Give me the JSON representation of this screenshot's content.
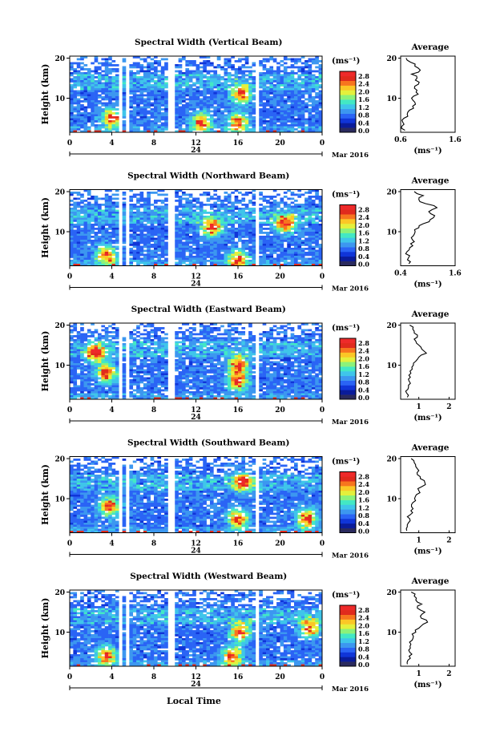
{
  "figure": {
    "y_axis_label": "Height (km)",
    "x_axis_label": "Local Time",
    "date_label": "Mar 2016",
    "date_day": "24",
    "x_ticks": [
      "0",
      "4",
      "8",
      "12",
      "16",
      "20",
      "0"
    ],
    "y_ticks": [
      "20",
      "10"
    ],
    "colorbar_unit": "(ms⁻¹)",
    "colorbar_ticks": [
      "2.8",
      "2.4",
      "2.0",
      "1.6",
      "1.2",
      "0.8",
      "0.4",
      "0.0"
    ],
    "average_title": "Average",
    "average_unit": "(ms⁻¹)",
    "colormap": [
      "#2a2a5e",
      "#0a1c9a",
      "#1035d8",
      "#2a64f5",
      "#3c97f0",
      "#3fc5ea",
      "#43e8c4",
      "#8cf27a",
      "#e4f03c",
      "#fbc726",
      "#f7751e",
      "#e02a1d",
      "#ee2a2a"
    ]
  },
  "chart_data": [
    {
      "type": "heatmap",
      "title": "Spectral Width (Vertical Beam)",
      "xlabel": "",
      "ylabel": "Height (km)",
      "xlim": [
        0,
        24
      ],
      "ylim": [
        1.5,
        20.5
      ],
      "colorbar_range": [
        0.0,
        2.8
      ],
      "data_gaps_hours": [
        [
          4.75,
          5.1
        ],
        [
          5.4,
          5.75
        ],
        [
          9.2,
          9.9
        ],
        [
          17.6,
          18.1
        ]
      ],
      "enhanced_regions": [
        {
          "hour": 4.0,
          "height_km": 5
        },
        {
          "hour": 16.0,
          "height_km": 4
        },
        {
          "hour": 16.3,
          "height_km": 11
        },
        {
          "hour": 12.5,
          "height_km": 4
        }
      ],
      "average_profile": {
        "xlim": [
          0.6,
          1.6
        ],
        "x_ticks": [
          "0.6",
          "1.6"
        ],
        "height_km": [
          2,
          3,
          4,
          5,
          6,
          7,
          8,
          9,
          10,
          11,
          12,
          13,
          14,
          15,
          16,
          17,
          18,
          19,
          20
        ],
        "value": [
          0.68,
          0.62,
          0.64,
          0.66,
          0.72,
          0.76,
          0.82,
          0.86,
          0.8,
          0.92,
          0.9,
          0.86,
          0.94,
          0.9,
          0.8,
          0.96,
          0.86,
          0.78,
          0.7
        ]
      }
    },
    {
      "type": "heatmap",
      "title": "Spectral Width (Northward Beam)",
      "xlabel": "",
      "ylabel": "Height (km)",
      "xlim": [
        0,
        24
      ],
      "ylim": [
        1.5,
        20.5
      ],
      "colorbar_range": [
        0.0,
        2.8
      ],
      "data_gaps_hours": [
        [
          4.75,
          5.1
        ],
        [
          5.4,
          5.75
        ],
        [
          9.2,
          9.9
        ],
        [
          17.6,
          18.1
        ]
      ],
      "enhanced_regions": [
        {
          "hour": 3.5,
          "height_km": 4
        },
        {
          "hour": 16.0,
          "height_km": 3
        },
        {
          "hour": 13.5,
          "height_km": 11
        },
        {
          "hour": 20.5,
          "height_km": 12
        }
      ],
      "average_profile": {
        "xlim": [
          0.4,
          1.6
        ],
        "x_ticks": [
          "0.4",
          "1.6"
        ],
        "height_km": [
          2,
          3,
          4,
          5,
          6,
          7,
          8,
          9,
          10,
          11,
          12,
          13,
          14,
          15,
          16,
          17,
          18,
          19,
          20
        ],
        "value": [
          0.58,
          0.55,
          0.6,
          0.54,
          0.6,
          0.62,
          0.66,
          0.68,
          0.72,
          0.8,
          0.9,
          1.05,
          1.15,
          1.02,
          1.2,
          0.95,
          0.8,
          0.9,
          0.7
        ]
      }
    },
    {
      "type": "heatmap",
      "title": "Spectral Width (Eastward Beam)",
      "xlabel": "",
      "ylabel": "Height (km)",
      "xlim": [
        0,
        24
      ],
      "ylim": [
        1.5,
        20.5
      ],
      "colorbar_range": [
        0.0,
        2.8
      ],
      "data_gaps_hours": [
        [
          4.75,
          5.1
        ],
        [
          5.4,
          5.75
        ],
        [
          9.2,
          9.9
        ],
        [
          17.6,
          18.1
        ]
      ],
      "enhanced_regions": [
        {
          "hour": 3.5,
          "height_km": 8
        },
        {
          "hour": 16.0,
          "height_km": 6
        },
        {
          "hour": 16.0,
          "height_km": 10
        },
        {
          "hour": 2.5,
          "height_km": 13
        }
      ],
      "average_profile": {
        "xlim": [
          0.4,
          2.2
        ],
        "x_ticks": [
          "1",
          "2"
        ],
        "height_km": [
          2,
          3,
          4,
          5,
          6,
          7,
          8,
          9,
          10,
          11,
          12,
          13,
          14,
          15,
          16,
          17,
          18,
          19,
          20
        ],
        "value": [
          0.62,
          0.6,
          0.64,
          0.66,
          0.68,
          0.72,
          0.74,
          0.78,
          0.82,
          0.9,
          1.0,
          1.25,
          1.1,
          1.0,
          0.9,
          0.95,
          0.85,
          0.8,
          0.7
        ]
      }
    },
    {
      "type": "heatmap",
      "title": "Spectral Width (Southward Beam)",
      "xlabel": "",
      "ylabel": "Height (km)",
      "xlim": [
        0,
        24
      ],
      "ylim": [
        1.5,
        20.5
      ],
      "colorbar_range": [
        0.0,
        2.8
      ],
      "data_gaps_hours": [
        [
          4.75,
          5.1
        ],
        [
          5.4,
          5.75
        ],
        [
          9.2,
          9.9
        ],
        [
          17.6,
          18.1
        ]
      ],
      "enhanced_regions": [
        {
          "hour": 3.8,
          "height_km": 8
        },
        {
          "hour": 16.0,
          "height_km": 5
        },
        {
          "hour": 22.5,
          "height_km": 5
        },
        {
          "hour": 16.5,
          "height_km": 14
        }
      ],
      "average_profile": {
        "xlim": [
          0.4,
          2.2
        ],
        "x_ticks": [
          "1",
          "2"
        ],
        "height_km": [
          2,
          3,
          4,
          5,
          6,
          7,
          8,
          9,
          10,
          11,
          12,
          13,
          14,
          15,
          16,
          17,
          18,
          19,
          20
        ],
        "value": [
          0.6,
          0.62,
          0.66,
          0.7,
          0.72,
          0.74,
          0.76,
          0.8,
          0.86,
          0.92,
          1.0,
          1.1,
          1.2,
          1.05,
          0.95,
          1.0,
          0.9,
          0.85,
          0.75
        ]
      }
    },
    {
      "type": "heatmap",
      "title": "Spectral Width (Westward Beam)",
      "xlabel": "Local Time",
      "ylabel": "Height (km)",
      "xlim": [
        0,
        24
      ],
      "ylim": [
        1.5,
        20.5
      ],
      "colorbar_range": [
        0.0,
        2.8
      ],
      "data_gaps_hours": [
        [
          4.75,
          5.1
        ],
        [
          5.4,
          5.75
        ],
        [
          9.2,
          9.9
        ],
        [
          17.6,
          18.1
        ]
      ],
      "enhanced_regions": [
        {
          "hour": 3.5,
          "height_km": 4
        },
        {
          "hour": 15.5,
          "height_km": 4
        },
        {
          "hour": 16.2,
          "height_km": 10
        },
        {
          "hour": 22.8,
          "height_km": 11
        }
      ],
      "average_profile": {
        "xlim": [
          0.4,
          2.2
        ],
        "x_ticks": [
          "1",
          "2"
        ],
        "height_km": [
          2,
          3,
          4,
          5,
          6,
          7,
          8,
          9,
          10,
          11,
          12,
          13,
          14,
          15,
          16,
          17,
          18,
          19,
          20
        ],
        "value": [
          0.62,
          0.64,
          0.68,
          0.7,
          0.72,
          0.74,
          0.78,
          0.82,
          0.9,
          1.0,
          1.15,
          1.25,
          1.05,
          1.2,
          0.95,
          1.1,
          0.9,
          0.85,
          0.75
        ]
      }
    }
  ]
}
